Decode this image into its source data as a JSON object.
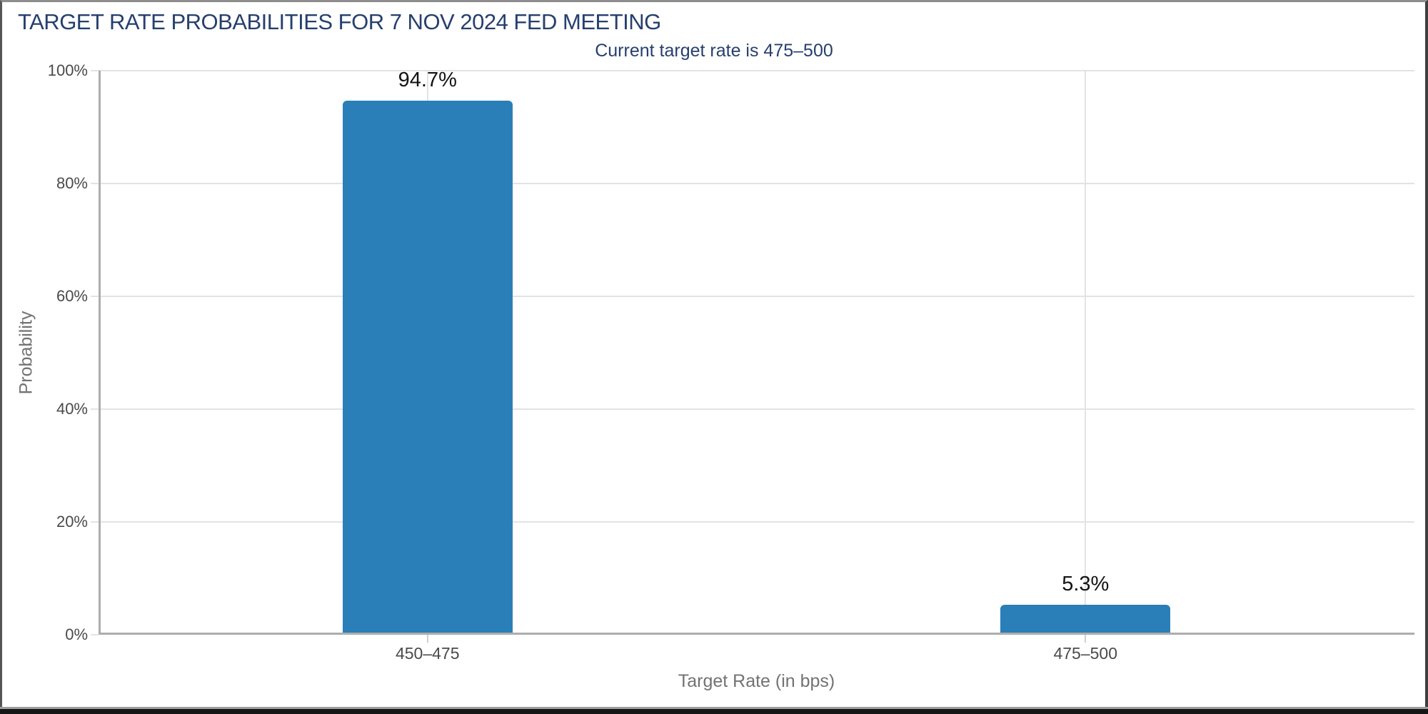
{
  "chart_data": {
    "type": "bar",
    "title": "TARGET RATE PROBABILITIES FOR 7 NOV 2024 FED MEETING",
    "subtitle": "Current target rate is 475–500",
    "categories": [
      "450–475",
      "475–500"
    ],
    "values": [
      94.7,
      5.3
    ],
    "value_labels": [
      "94.7%",
      "5.3%"
    ],
    "xlabel": "Target Rate (in bps)",
    "ylabel": "Probability",
    "ylim": [
      0,
      100
    ],
    "ytick_step": 20,
    "ytick_labels": [
      "0%",
      "20%",
      "40%",
      "60%",
      "80%",
      "100%"
    ],
    "grid": true,
    "legend": "none"
  },
  "colors": {
    "title_navy": "#263F6E",
    "bar_blue": "#2A7FB8",
    "gridline": "#E3E3E3",
    "axis_line": "#ADADAD",
    "tick_label": "#4A4A4A",
    "axis_title": "#737373",
    "value_label": "#141414"
  }
}
